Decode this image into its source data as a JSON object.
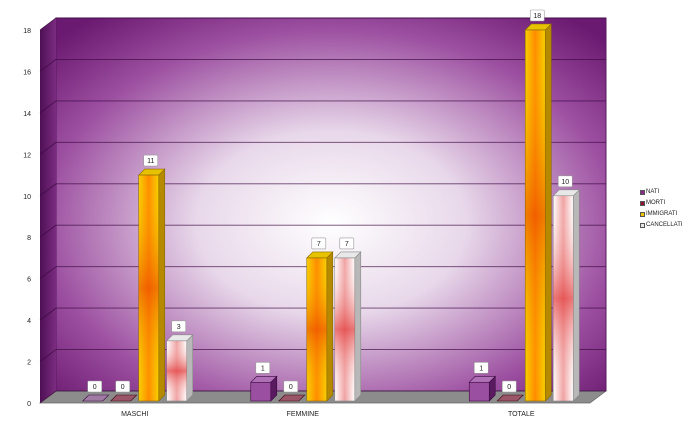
{
  "chart_data": {
    "type": "bar",
    "categories": [
      "MASCHI",
      "FEMMINE",
      "TOTALE"
    ],
    "series": [
      {
        "name": "NATI",
        "values": [
          0,
          1,
          1
        ],
        "color": "#8a2a8c"
      },
      {
        "name": "MORTI",
        "values": [
          0,
          0,
          0
        ],
        "color": "#8a1530"
      },
      {
        "name": "IMMIGRATI",
        "values": [
          11,
          7,
          18
        ],
        "color": "#f2c400"
      },
      {
        "name": "CANCELLATI",
        "values": [
          3,
          7,
          10
        ],
        "color": "#e23a3a"
      }
    ],
    "ylim": [
      0,
      18
    ],
    "yticks": [
      0,
      2,
      4,
      6,
      8,
      10,
      12,
      14,
      16,
      18
    ],
    "title": "",
    "xlabel": "",
    "ylabel": "",
    "grid": true,
    "legend_position": "right",
    "value_labels": true
  },
  "legend": [
    {
      "label": "NATI",
      "color": "#8a2a8c"
    },
    {
      "label": "MORTI",
      "color": "#8a1530"
    },
    {
      "label": "IMMIGRATI",
      "color": "#f2c400"
    },
    {
      "label": "CANCELLATI",
      "color": "#e6e6e6"
    }
  ]
}
